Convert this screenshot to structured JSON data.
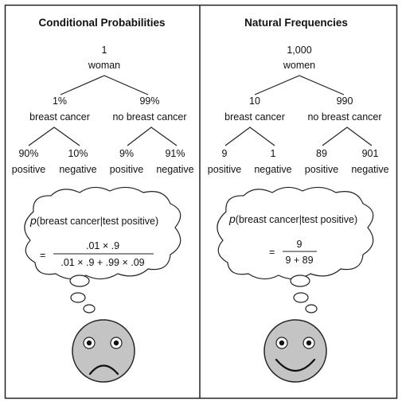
{
  "left": {
    "title": "Conditional Probabilities",
    "root": {
      "num": "1",
      "label": "woman"
    },
    "mid": [
      {
        "num": "1%",
        "label": "breast cancer"
      },
      {
        "num": "99%",
        "label": "no breast cancer"
      }
    ],
    "leaves": [
      {
        "num": "90%",
        "label": "positive"
      },
      {
        "num": "10%",
        "label": "negative"
      },
      {
        "num": "9%",
        "label": "positive"
      },
      {
        "num": "91%",
        "label": "negative"
      }
    ],
    "formula": {
      "p": "p",
      "expr": "(breast cancer|test positive)",
      "eq": "=",
      "numerator": ".01 × .9",
      "denominator": ".01 × .9 + .99 × .09"
    },
    "face": "sad-face"
  },
  "right": {
    "title": "Natural Frequencies",
    "root": {
      "num": "1,000",
      "label": "women"
    },
    "mid": [
      {
        "num": "10",
        "label": "breast cancer"
      },
      {
        "num": "990",
        "label": "no breast cancer"
      }
    ],
    "leaves": [
      {
        "num": "9",
        "label": "positive"
      },
      {
        "num": "1",
        "label": "negative"
      },
      {
        "num": "89",
        "label": "positive"
      },
      {
        "num": "901",
        "label": "negative"
      }
    ],
    "formula": {
      "p": "p",
      "expr": "(breast cancer|test positive)",
      "eq": "=",
      "numerator": "9",
      "denominator": "9 + 89"
    },
    "face": "happy-face"
  }
}
